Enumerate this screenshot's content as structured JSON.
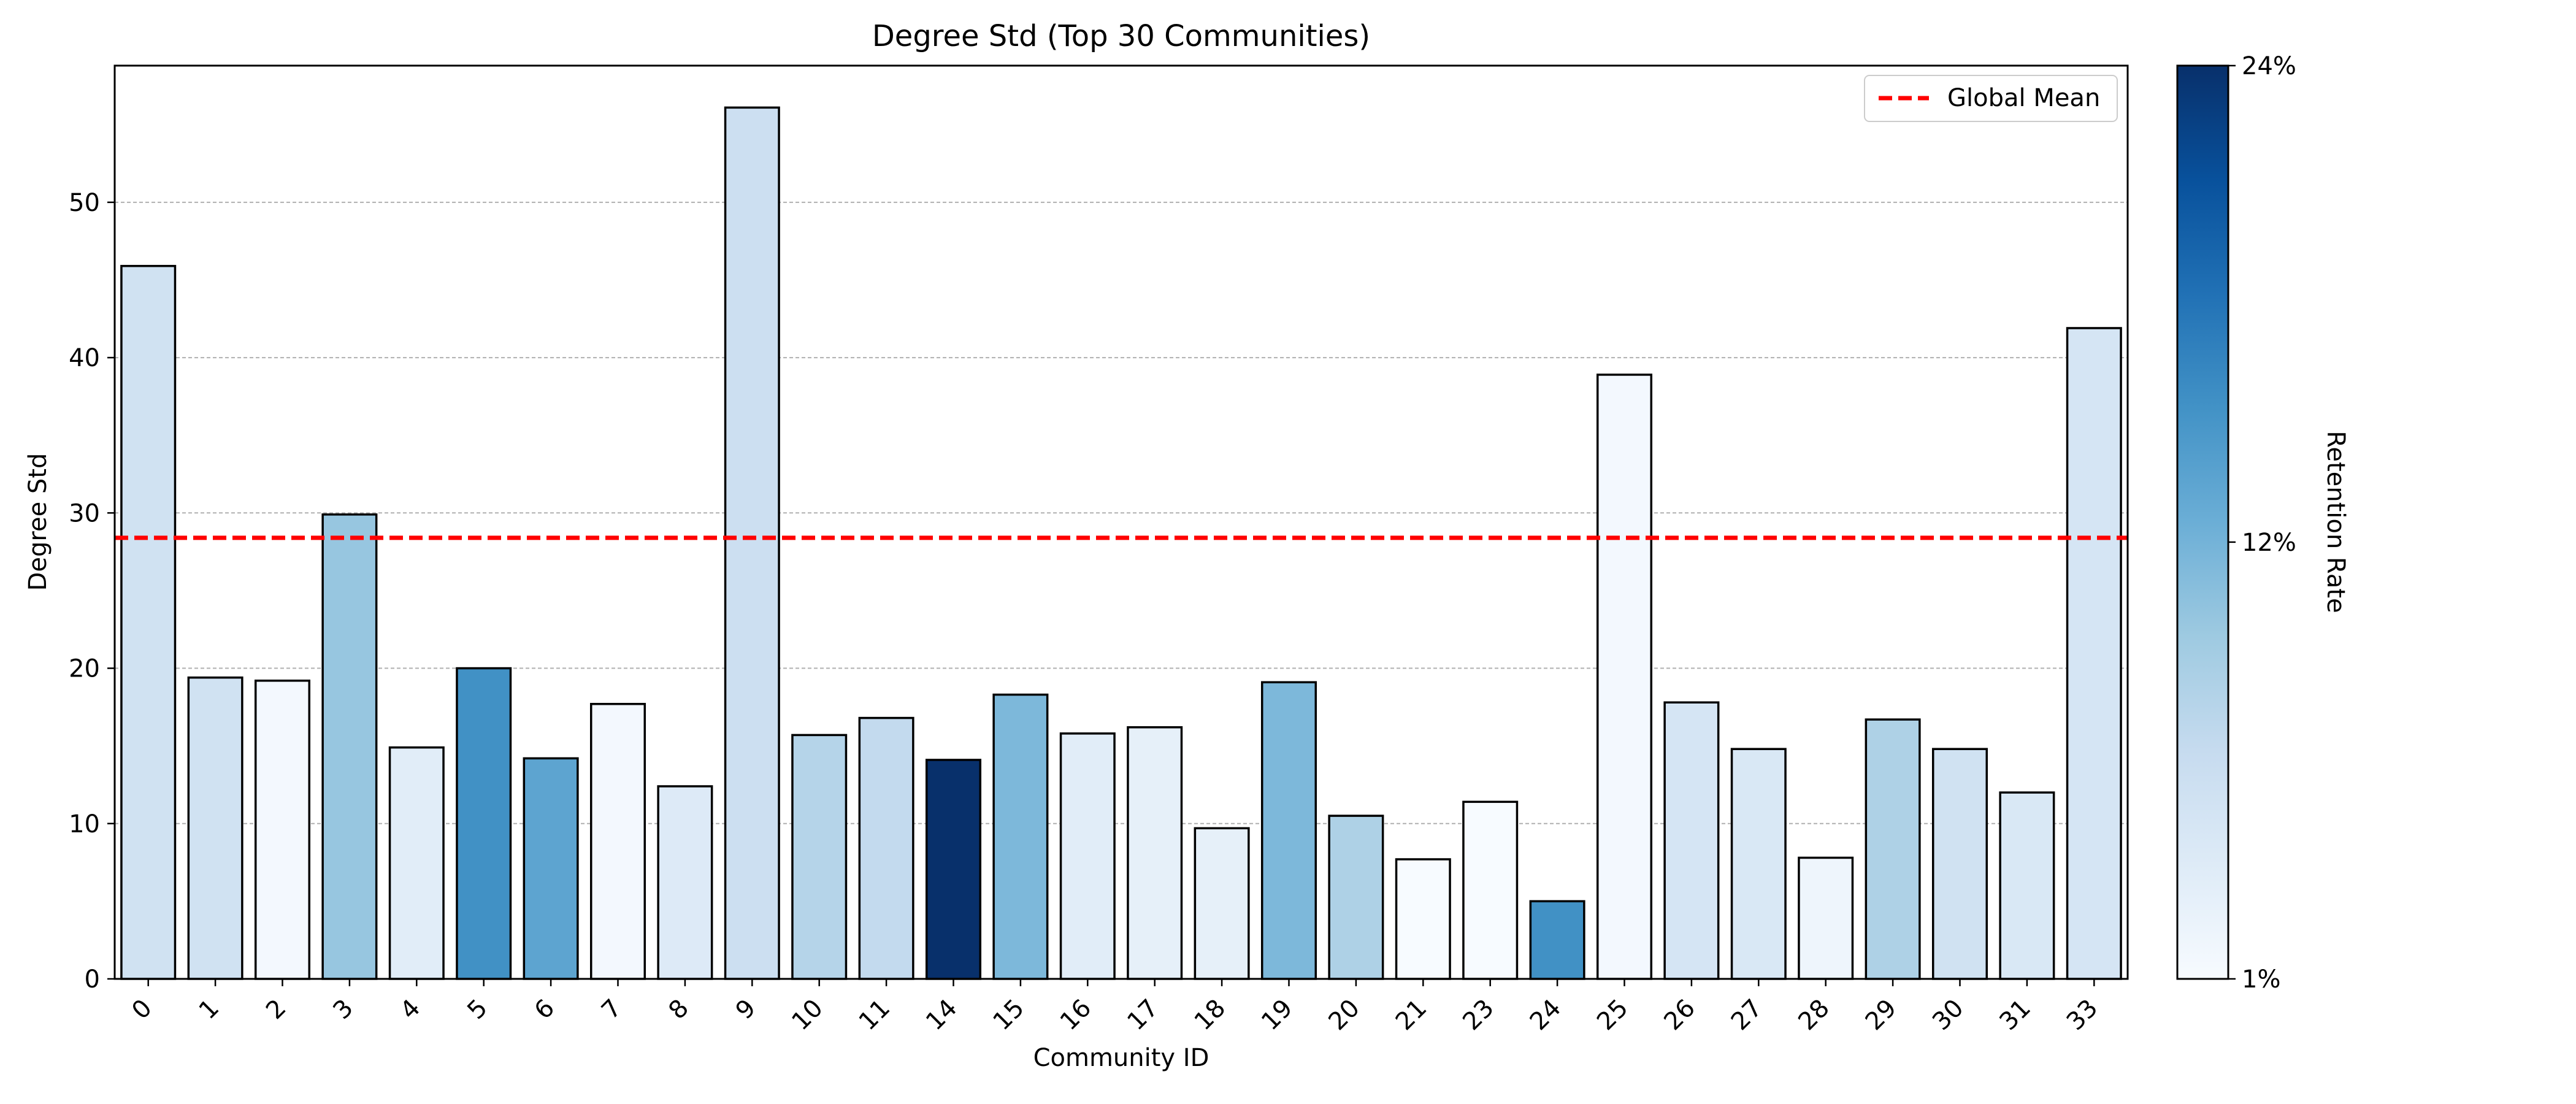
{
  "chart_data": {
    "type": "bar",
    "title": "Degree Std (Top 30 Communities)",
    "xlabel": "Community ID",
    "ylabel": "Degree Std",
    "ylim": [
      0,
      58.8
    ],
    "yticks": [
      0,
      10,
      20,
      30,
      40,
      50
    ],
    "grid": "y-dashed",
    "categories": [
      "0",
      "1",
      "2",
      "3",
      "4",
      "5",
      "6",
      "7",
      "8",
      "9",
      "10",
      "11",
      "14",
      "15",
      "16",
      "17",
      "18",
      "19",
      "20",
      "21",
      "23",
      "24",
      "25",
      "26",
      "27",
      "28",
      "29",
      "30",
      "31",
      "33"
    ],
    "values": [
      45.9,
      19.4,
      19.2,
      29.9,
      14.9,
      20.0,
      14.2,
      17.7,
      12.4,
      56.1,
      15.7,
      16.8,
      14.1,
      18.3,
      15.8,
      16.2,
      9.7,
      19.1,
      10.5,
      7.7,
      11.4,
      5.0,
      38.9,
      17.8,
      14.8,
      7.8,
      16.7,
      14.8,
      12.0,
      41.9
    ],
    "retention_rate": [
      5.5,
      5.5,
      1.5,
      10.0,
      3.5,
      15.5,
      13.5,
      1.5,
      4.0,
      6.0,
      8.0,
      7.0,
      24.0,
      11.5,
      3.5,
      3.0,
      3.0,
      11.5,
      8.5,
      1.0,
      1.0,
      15.5,
      1.5,
      5.0,
      4.5,
      2.0,
      8.5,
      5.5,
      4.5,
      5.0
    ],
    "reference_line": {
      "label": "Global Mean",
      "value": 28.4,
      "color": "#ff0000",
      "style": "dashed"
    },
    "legend": {
      "placement": "top-right",
      "entries": [
        "Global Mean"
      ]
    },
    "colorbar": {
      "label": "Retention Rate",
      "min": 1,
      "max": 24,
      "ticks": [
        1,
        12,
        24
      ],
      "tick_labels": [
        "1%",
        "12%",
        "24%"
      ],
      "colormap": "Blues"
    }
  }
}
